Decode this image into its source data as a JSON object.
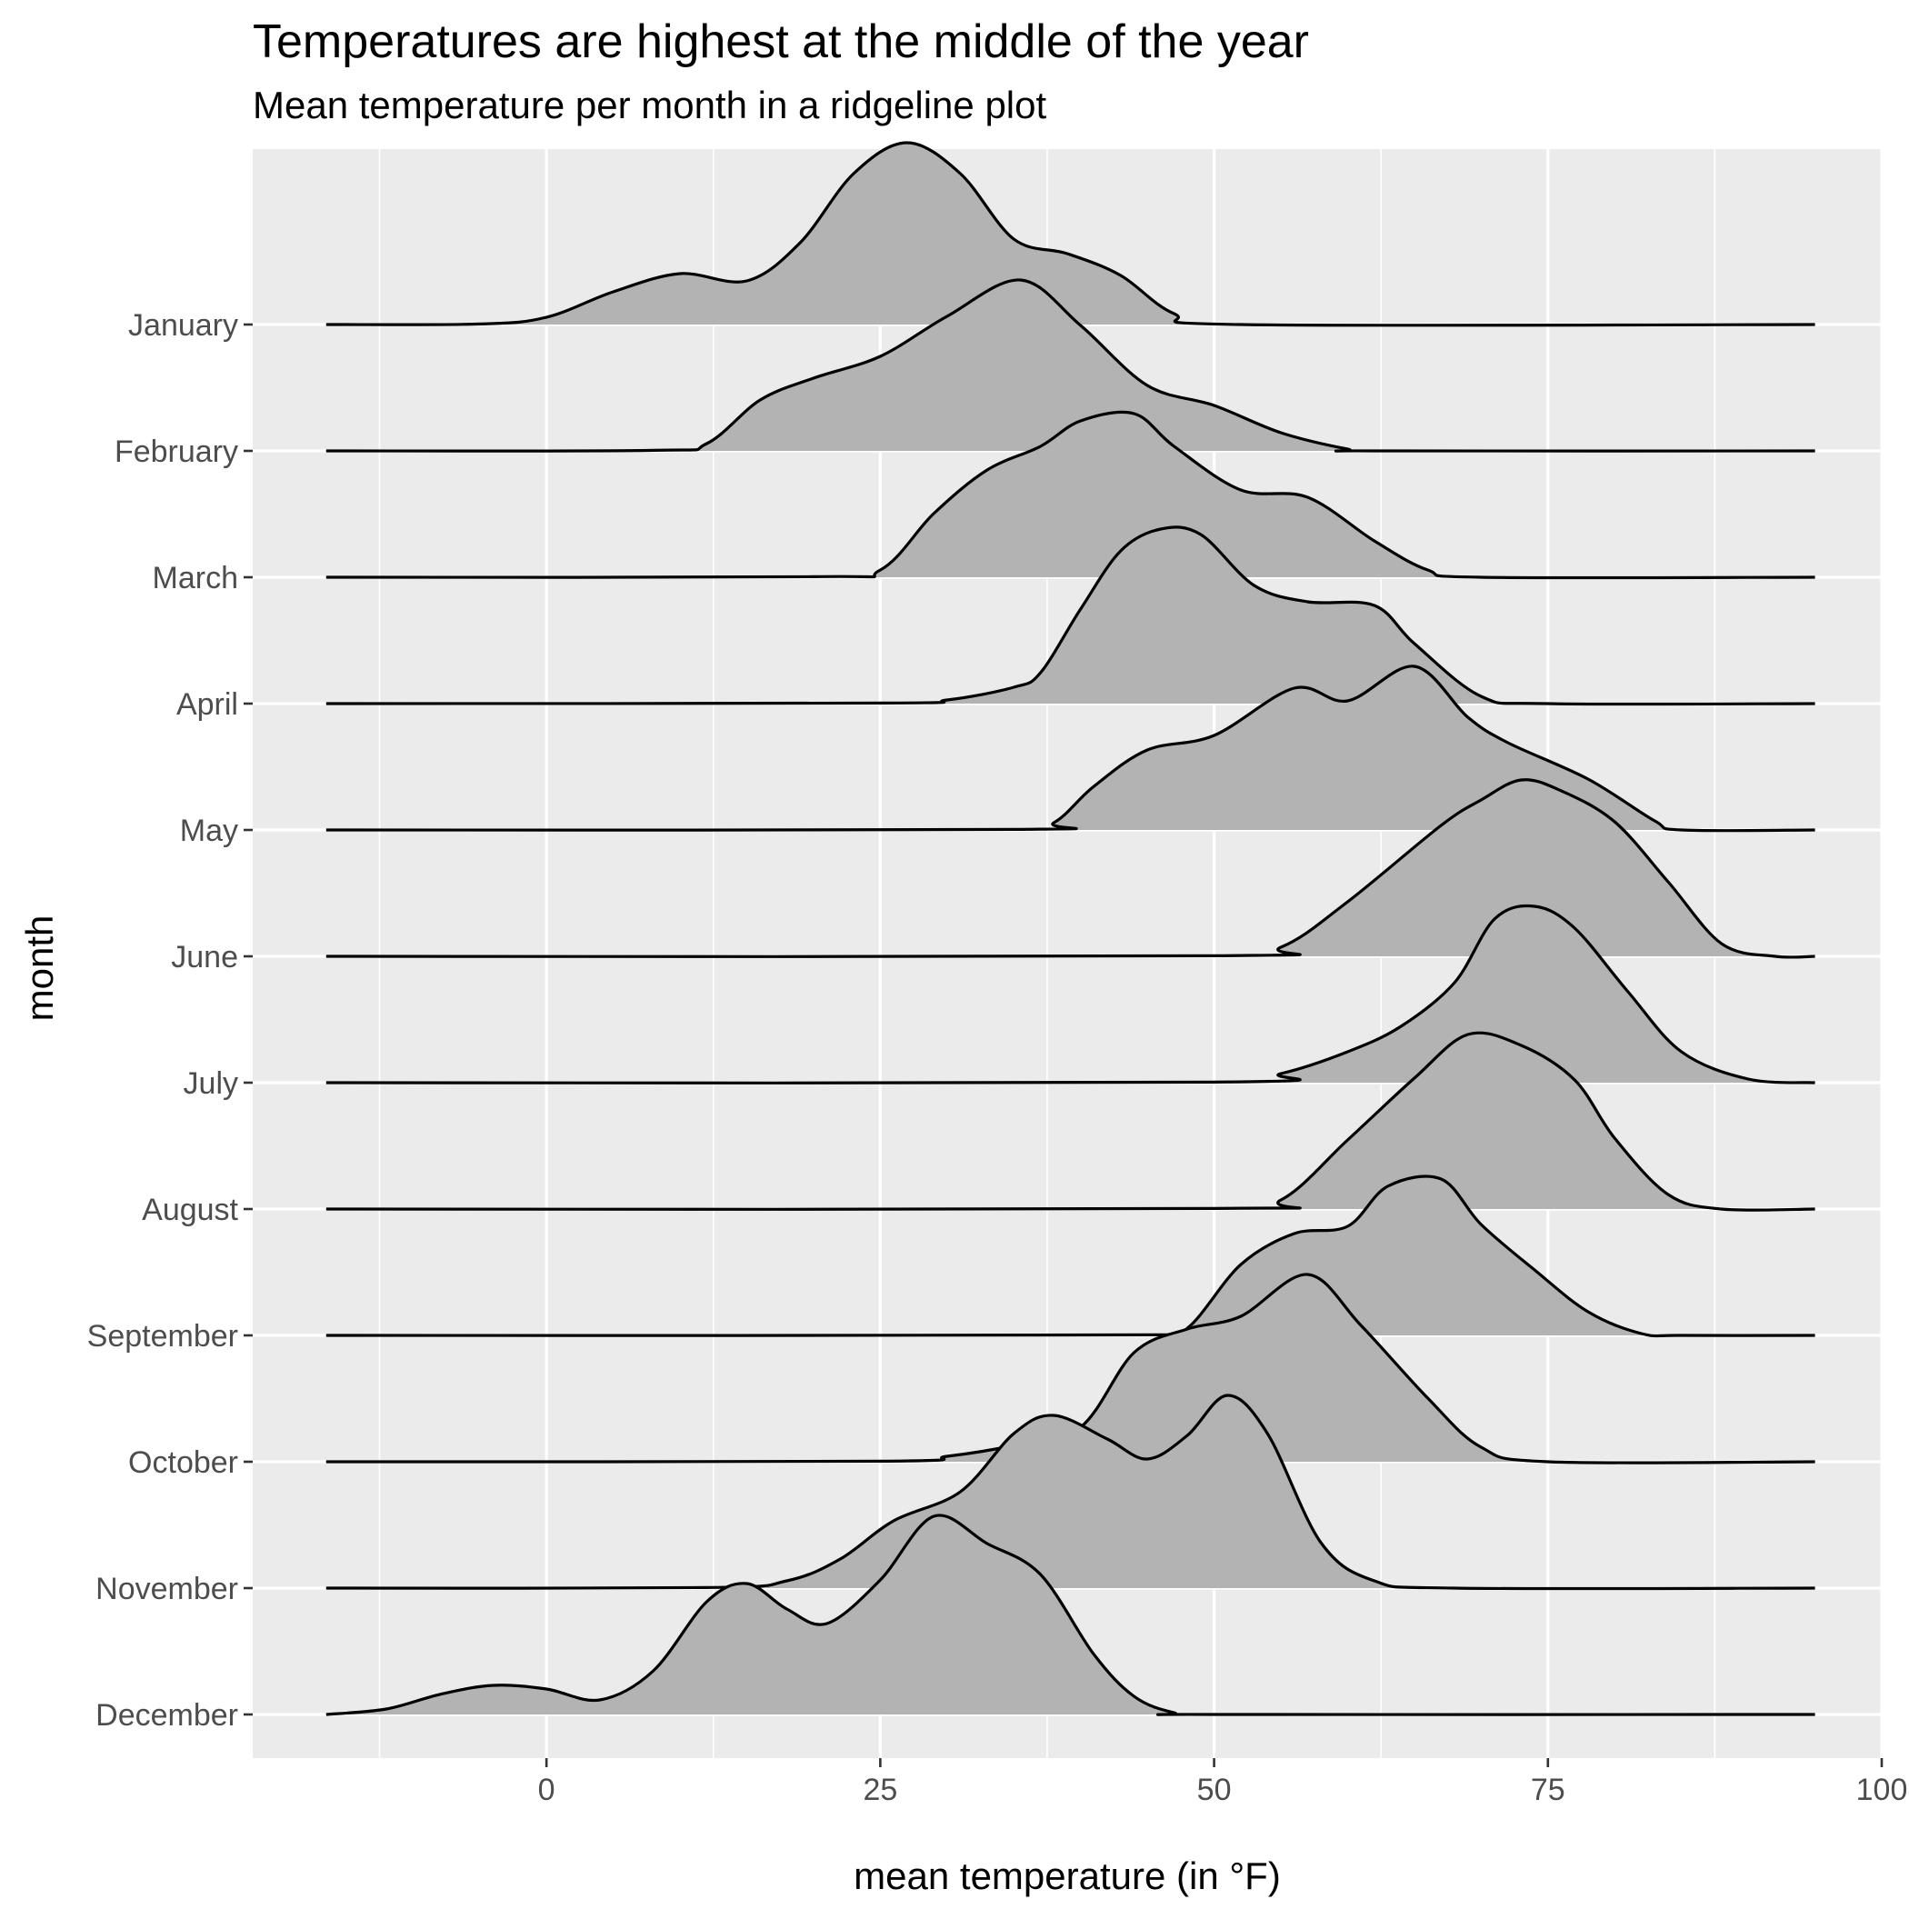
{
  "chart_data": {
    "type": "ridgeline",
    "title": "Temperatures are highest at the middle of the year",
    "subtitle": "Mean temperature per month in a ridgeline plot",
    "xlabel": "mean temperature (in °F)",
    "ylabel": "month",
    "xlim": [
      -22,
      100
    ],
    "x_ticks": [
      0,
      25,
      50,
      75,
      100
    ],
    "x_range_drawn": [
      -16.5,
      95
    ],
    "fill_color": "#b3b3b3",
    "panel_color": "#ebebeb",
    "grid_color": "#ffffff",
    "categories": [
      "January",
      "February",
      "March",
      "April",
      "May",
      "June",
      "July",
      "August",
      "September",
      "October",
      "November",
      "December"
    ],
    "series": [
      {
        "name": "January",
        "points": [
          [
            -16.5,
            0
          ],
          [
            -5,
            0.003
          ],
          [
            0,
            0.04
          ],
          [
            5,
            0.18
          ],
          [
            10,
            0.28
          ],
          [
            15,
            0.24
          ],
          [
            19,
            0.45
          ],
          [
            23,
            0.83
          ],
          [
            27,
            1.0
          ],
          [
            31,
            0.83
          ],
          [
            35,
            0.47
          ],
          [
            39,
            0.39
          ],
          [
            43,
            0.27
          ],
          [
            47,
            0.06
          ],
          [
            52,
            0
          ],
          [
            95,
            0
          ]
        ]
      },
      {
        "name": "February",
        "points": [
          [
            -16.5,
            0
          ],
          [
            8,
            0.003
          ],
          [
            12,
            0.04
          ],
          [
            16,
            0.28
          ],
          [
            20,
            0.4
          ],
          [
            25,
            0.52
          ],
          [
            30,
            0.74
          ],
          [
            35.5,
            0.94
          ],
          [
            40,
            0.69
          ],
          [
            45,
            0.36
          ],
          [
            50,
            0.25
          ],
          [
            55,
            0.1
          ],
          [
            60,
            0.01
          ],
          [
            62,
            0
          ],
          [
            95,
            0
          ]
        ]
      },
      {
        "name": "March",
        "points": [
          [
            -16.5,
            0
          ],
          [
            20,
            0.003
          ],
          [
            25,
            0.04
          ],
          [
            29,
            0.35
          ],
          [
            33,
            0.59
          ],
          [
            37,
            0.72
          ],
          [
            40,
            0.86
          ],
          [
            44,
            0.9
          ],
          [
            47,
            0.72
          ],
          [
            52,
            0.48
          ],
          [
            57,
            0.44
          ],
          [
            62,
            0.2
          ],
          [
            66,
            0.04
          ],
          [
            70,
            0
          ],
          [
            95,
            0
          ]
        ]
      },
      {
        "name": "April",
        "points": [
          [
            -16.5,
            0
          ],
          [
            25,
            0.003
          ],
          [
            30,
            0.02
          ],
          [
            35,
            0.09
          ],
          [
            37,
            0.17
          ],
          [
            40,
            0.52
          ],
          [
            43,
            0.84
          ],
          [
            46,
            0.96
          ],
          [
            49,
            0.93
          ],
          [
            53,
            0.65
          ],
          [
            57,
            0.56
          ],
          [
            62,
            0.54
          ],
          [
            65,
            0.33
          ],
          [
            70,
            0.04
          ],
          [
            75,
            0
          ],
          [
            95,
            0
          ]
        ]
      },
      {
        "name": "May",
        "points": [
          [
            -16.5,
            0
          ],
          [
            35,
            0.003
          ],
          [
            38,
            0.04
          ],
          [
            41,
            0.24
          ],
          [
            45,
            0.44
          ],
          [
            50,
            0.52
          ],
          [
            56,
            0.78
          ],
          [
            60,
            0.71
          ],
          [
            65,
            0.9
          ],
          [
            69,
            0.62
          ],
          [
            72,
            0.48
          ],
          [
            78,
            0.28
          ],
          [
            83,
            0.05
          ],
          [
            85,
            0
          ],
          [
            95,
            0
          ]
        ]
      },
      {
        "name": "June",
        "points": [
          [
            -16.5,
            0
          ],
          [
            50,
            0.003
          ],
          [
            55,
            0.05
          ],
          [
            60,
            0.3
          ],
          [
            67,
            0.72
          ],
          [
            70,
            0.86
          ],
          [
            73,
            0.97
          ],
          [
            76,
            0.91
          ],
          [
            80,
            0.74
          ],
          [
            84,
            0.41
          ],
          [
            88,
            0.07
          ],
          [
            92,
            0
          ],
          [
            95,
            0
          ]
        ]
      },
      {
        "name": "July",
        "points": [
          [
            -16.5,
            0
          ],
          [
            50,
            0.003
          ],
          [
            55,
            0.05
          ],
          [
            60,
            0.17
          ],
          [
            64,
            0.31
          ],
          [
            68,
            0.55
          ],
          [
            71,
            0.9
          ],
          [
            74,
            0.97
          ],
          [
            77,
            0.85
          ],
          [
            81,
            0.5
          ],
          [
            85,
            0.17
          ],
          [
            90,
            0.02
          ],
          [
            95,
            0
          ]
        ]
      },
      {
        "name": "August",
        "points": [
          [
            -16.5,
            0
          ],
          [
            50,
            0.003
          ],
          [
            55,
            0.05
          ],
          [
            60,
            0.38
          ],
          [
            65,
            0.72
          ],
          [
            69,
            0.96
          ],
          [
            73,
            0.9
          ],
          [
            77,
            0.71
          ],
          [
            80,
            0.39
          ],
          [
            84,
            0.08
          ],
          [
            88,
            0
          ],
          [
            95,
            0
          ]
        ]
      },
      {
        "name": "September",
        "points": [
          [
            -16.5,
            0
          ],
          [
            45,
            0.003
          ],
          [
            48,
            0.04
          ],
          [
            52,
            0.39
          ],
          [
            56,
            0.56
          ],
          [
            60,
            0.6
          ],
          [
            63,
            0.82
          ],
          [
            67,
            0.86
          ],
          [
            70,
            0.61
          ],
          [
            74,
            0.36
          ],
          [
            78,
            0.13
          ],
          [
            82,
            0.01
          ],
          [
            85,
            0
          ],
          [
            95,
            0
          ]
        ]
      },
      {
        "name": "October",
        "points": [
          [
            -16.5,
            0
          ],
          [
            25,
            0.003
          ],
          [
            30,
            0.03
          ],
          [
            35,
            0.09
          ],
          [
            40,
            0.19
          ],
          [
            44,
            0.6
          ],
          [
            48,
            0.73
          ],
          [
            52,
            0.8
          ],
          [
            57,
            1.03
          ],
          [
            61,
            0.75
          ],
          [
            66,
            0.35
          ],
          [
            70,
            0.08
          ],
          [
            75,
            0
          ],
          [
            95,
            0
          ]
        ]
      },
      {
        "name": "November",
        "points": [
          [
            -16.5,
            0
          ],
          [
            12,
            0.003
          ],
          [
            18,
            0.04
          ],
          [
            22,
            0.16
          ],
          [
            26,
            0.37
          ],
          [
            31,
            0.53
          ],
          [
            35,
            0.85
          ],
          [
            38,
            0.95
          ],
          [
            42,
            0.82
          ],
          [
            45,
            0.71
          ],
          [
            48,
            0.84
          ],
          [
            51,
            1.06
          ],
          [
            54,
            0.85
          ],
          [
            58,
            0.25
          ],
          [
            62,
            0.04
          ],
          [
            68,
            0
          ],
          [
            95,
            0
          ]
        ]
      },
      {
        "name": "December",
        "points": [
          [
            -16.5,
            0
          ],
          [
            -12,
            0.03
          ],
          [
            -8,
            0.11
          ],
          [
            -4,
            0.16
          ],
          [
            0,
            0.14
          ],
          [
            4,
            0.08
          ],
          [
            8,
            0.24
          ],
          [
            12,
            0.62
          ],
          [
            15,
            0.72
          ],
          [
            18,
            0.58
          ],
          [
            21,
            0.5
          ],
          [
            25,
            0.74
          ],
          [
            29,
            1.09
          ],
          [
            33,
            0.94
          ],
          [
            37,
            0.77
          ],
          [
            41,
            0.33
          ],
          [
            44,
            0.1
          ],
          [
            47,
            0.01
          ],
          [
            50,
            0
          ],
          [
            95,
            0
          ]
        ]
      }
    ]
  }
}
